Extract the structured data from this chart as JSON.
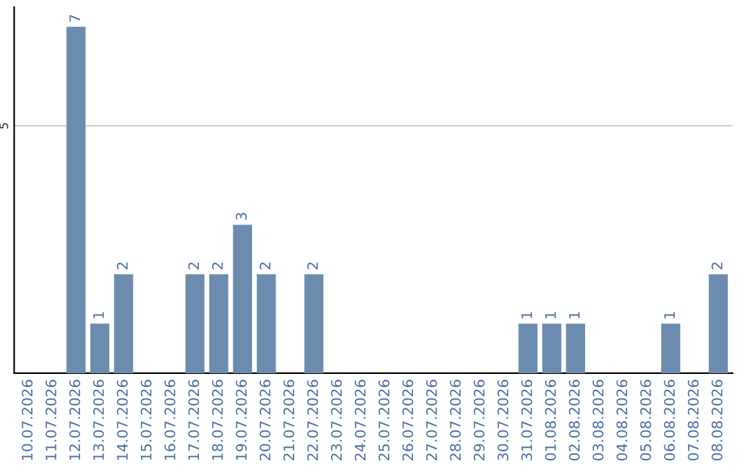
{
  "chart_data": {
    "type": "bar",
    "categories": [
      "10.07.2026",
      "11.07.2026",
      "12.07.2026",
      "13.07.2026",
      "14.07.2026",
      "15.07.2026",
      "16.07.2026",
      "17.07.2026",
      "18.07.2026",
      "19.07.2026",
      "20.07.2026",
      "21.07.2026",
      "22.07.2026",
      "23.07.2026",
      "24.07.2026",
      "25.07.2026",
      "26.07.2026",
      "27.07.2026",
      "28.07.2026",
      "29.07.2026",
      "30.07.2026",
      "31.07.2026",
      "01.08.2026",
      "02.08.2026",
      "03.08.2026",
      "04.08.2026",
      "05.08.2026",
      "06.08.2026",
      "07.08.2026",
      "08.08.2026"
    ],
    "values": [
      null,
      null,
      7,
      1,
      2,
      null,
      null,
      2,
      2,
      3,
      2,
      null,
      2,
      null,
      null,
      null,
      null,
      null,
      null,
      null,
      null,
      1,
      1,
      1,
      null,
      null,
      null,
      1,
      null,
      2
    ],
    "value_labels": [
      null,
      null,
      "7",
      "1",
      "2",
      null,
      null,
      "2",
      "2",
      "3",
      "2",
      null,
      "2",
      null,
      null,
      null,
      null,
      null,
      null,
      null,
      null,
      "1",
      "1",
      "1",
      null,
      null,
      null,
      "1",
      null,
      "2"
    ],
    "color": "#6b8cae",
    "ylim": [
      0,
      7.4
    ],
    "yticks": [
      5
    ],
    "grid": "y"
  }
}
